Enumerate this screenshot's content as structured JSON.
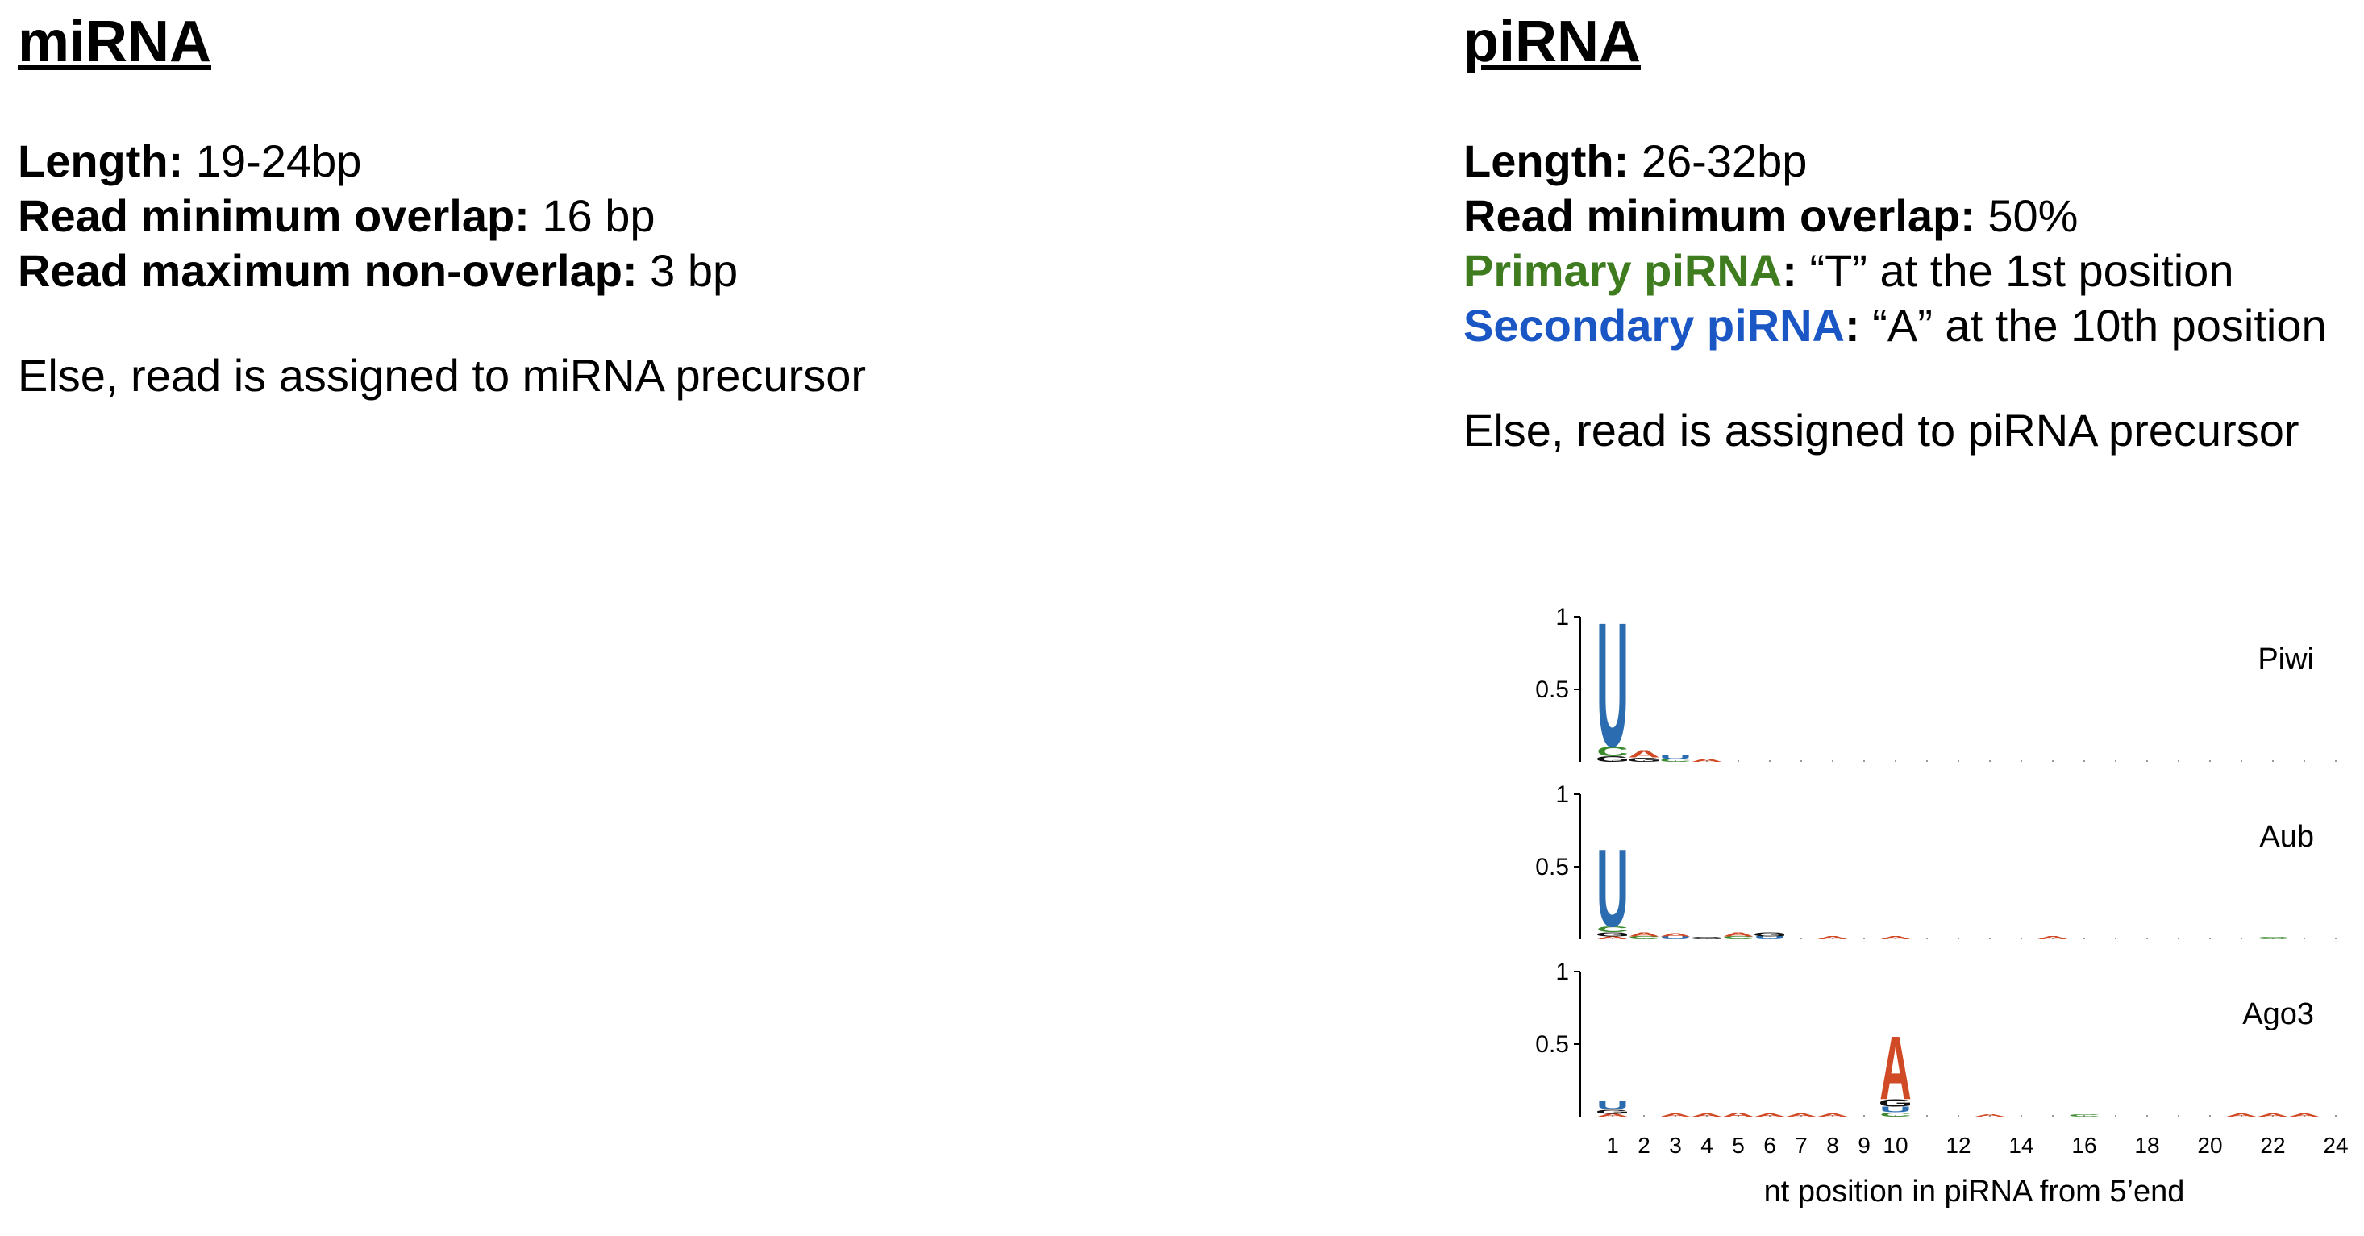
{
  "mirna": {
    "heading": "miRNA",
    "length_label": "Length:",
    "length_value": " 19-24bp",
    "min_overlap_label": "Read minimum overlap:",
    "min_overlap_value": " 16 bp",
    "max_nonoverlap_label": "Read maximum non-overlap:",
    "max_nonoverlap_value": " 3 bp",
    "else_text": "Else, read is assigned to miRNA precursor"
  },
  "pirna": {
    "heading": "piRNA",
    "length_label": "Length:",
    "length_value": " 26-32bp",
    "min_overlap_label": "Read minimum overlap:",
    "min_overlap_value": " 50%",
    "primary_label": "Primary piRNA",
    "primary_colon": ":",
    "primary_value": " “T” at the 1st position",
    "secondary_label": "Secondary piRNA",
    "secondary_colon": ":",
    "secondary_value": " “A” at the 10th position",
    "else_text": "Else, read is assigned to piRNA precursor"
  },
  "colors": {
    "primary": "#3f7b1f",
    "secondary": "#1a56c4",
    "U": "#2b6cb0",
    "A": "#d14a26",
    "C": "#3c8a2e",
    "G": "#111111"
  },
  "chart_data": {
    "type": "sequence-logo",
    "xlabel": "nt position in piRNA from 5’end",
    "x_ticks": [
      "1",
      "2",
      "3",
      "4",
      "5",
      "6",
      "7",
      "8",
      "9",
      "10",
      "12",
      "14",
      "16",
      "18",
      "20",
      "22",
      "24"
    ],
    "y_ticks": [
      "1",
      "0.5"
    ],
    "ylim": [
      0,
      1
    ],
    "positions": [
      1,
      2,
      3,
      4,
      5,
      6,
      7,
      8,
      9,
      10,
      11,
      12,
      13,
      14,
      15,
      16,
      17,
      18,
      19,
      20,
      21,
      22,
      23,
      24
    ],
    "panels": [
      {
        "name": "Piwi",
        "columns": [
          {
            "pos": 1,
            "letters": [
              {
                "l": "G",
                "v": 0.04
              },
              {
                "l": "C",
                "v": 0.07
              },
              {
                "l": "U",
                "v": 0.88
              }
            ]
          },
          {
            "pos": 2,
            "letters": [
              {
                "l": "G",
                "v": 0.03
              },
              {
                "l": "A",
                "v": 0.05
              }
            ]
          },
          {
            "pos": 3,
            "letters": [
              {
                "l": "C",
                "v": 0.02
              },
              {
                "l": "U",
                "v": 0.03
              }
            ]
          },
          {
            "pos": 4,
            "letters": [
              {
                "l": "A",
                "v": 0.02
              }
            ]
          }
        ]
      },
      {
        "name": "Aub",
        "columns": [
          {
            "pos": 1,
            "letters": [
              {
                "l": "A",
                "v": 0.02
              },
              {
                "l": "G",
                "v": 0.03
              },
              {
                "l": "C",
                "v": 0.04
              },
              {
                "l": "U",
                "v": 0.55
              }
            ]
          },
          {
            "pos": 2,
            "letters": [
              {
                "l": "C",
                "v": 0.02
              },
              {
                "l": "A",
                "v": 0.03
              }
            ]
          },
          {
            "pos": 3,
            "letters": [
              {
                "l": "U",
                "v": 0.02
              },
              {
                "l": "A",
                "v": 0.02
              }
            ]
          },
          {
            "pos": 4,
            "letters": [
              {
                "l": "G",
                "v": 0.01
              }
            ]
          },
          {
            "pos": 5,
            "letters": [
              {
                "l": "C",
                "v": 0.02
              },
              {
                "l": "A",
                "v": 0.03
              }
            ]
          },
          {
            "pos": 6,
            "letters": [
              {
                "l": "U",
                "v": 0.02
              },
              {
                "l": "G",
                "v": 0.03
              }
            ]
          },
          {
            "pos": 8,
            "letters": [
              {
                "l": "A",
                "v": 0.02
              }
            ]
          },
          {
            "pos": 10,
            "letters": [
              {
                "l": "A",
                "v": 0.02
              }
            ]
          },
          {
            "pos": 15,
            "letters": [
              {
                "l": "A",
                "v": 0.02
              }
            ]
          },
          {
            "pos": 22,
            "letters": [
              {
                "l": "C",
                "v": 0.01
              }
            ]
          }
        ]
      },
      {
        "name": "Ago3",
        "columns": [
          {
            "pos": 1,
            "letters": [
              {
                "l": "A",
                "v": 0.02
              },
              {
                "l": "G",
                "v": 0.03
              },
              {
                "l": "U",
                "v": 0.06
              }
            ]
          },
          {
            "pos": 3,
            "letters": [
              {
                "l": "A",
                "v": 0.02
              }
            ]
          },
          {
            "pos": 4,
            "letters": [
              {
                "l": "A",
                "v": 0.02
              }
            ]
          },
          {
            "pos": 5,
            "letters": [
              {
                "l": "A",
                "v": 0.03
              }
            ]
          },
          {
            "pos": 6,
            "letters": [
              {
                "l": "A",
                "v": 0.02
              }
            ]
          },
          {
            "pos": 7,
            "letters": [
              {
                "l": "A",
                "v": 0.02
              }
            ]
          },
          {
            "pos": 8,
            "letters": [
              {
                "l": "A",
                "v": 0.02
              }
            ]
          },
          {
            "pos": 10,
            "letters": [
              {
                "l": "C",
                "v": 0.03
              },
              {
                "l": "U",
                "v": 0.04
              },
              {
                "l": "G",
                "v": 0.05
              },
              {
                "l": "A",
                "v": 0.45
              }
            ]
          },
          {
            "pos": 13,
            "letters": [
              {
                "l": "A",
                "v": 0.01
              }
            ]
          },
          {
            "pos": 16,
            "letters": [
              {
                "l": "C",
                "v": 0.01
              }
            ]
          },
          {
            "pos": 21,
            "letters": [
              {
                "l": "A",
                "v": 0.02
              }
            ]
          },
          {
            "pos": 22,
            "letters": [
              {
                "l": "A",
                "v": 0.02
              }
            ]
          },
          {
            "pos": 23,
            "letters": [
              {
                "l": "A",
                "v": 0.02
              }
            ]
          }
        ]
      }
    ]
  }
}
